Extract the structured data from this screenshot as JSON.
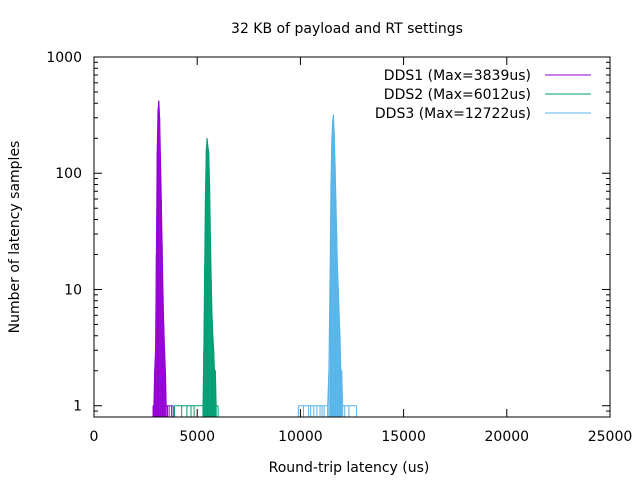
{
  "chart_data": {
    "type": "histogram",
    "title": "32 KB of payload and RT settings",
    "xlabel": "Round-trip latency (us)",
    "ylabel": "Number of latency samples",
    "xlim": [
      0,
      25000
    ],
    "ylim": [
      0.8,
      1000
    ],
    "y_scale": "log",
    "x_ticks": [
      0,
      5000,
      10000,
      15000,
      20000,
      25000
    ],
    "y_ticks": [
      {
        "value": 1,
        "label": "1"
      },
      {
        "value": 10,
        "label": "10"
      },
      {
        "value": 100,
        "label": "100"
      },
      {
        "value": 1000,
        "label": "1000"
      }
    ],
    "grid": false,
    "legend_position": "top-right",
    "series": [
      {
        "name": "DDS1 (Max=3839us)",
        "color": "#9400d3",
        "x": [
          2860,
          2900,
          2940,
          2980,
          3020,
          3060,
          3100,
          3140,
          3180,
          3220,
          3260,
          3300,
          3340,
          3380,
          3420,
          3460,
          3500,
          3560,
          3640,
          3760,
          3839
        ],
        "y": [
          1,
          1,
          2,
          3,
          20,
          150,
          350,
          420,
          300,
          140,
          60,
          25,
          10,
          5,
          3,
          2,
          1,
          1,
          1,
          1,
          1
        ]
      },
      {
        "name": "DDS2 (Max=6012us)",
        "color": "#009e73",
        "x": [
          3900,
          4250,
          4500,
          4700,
          4850,
          5280,
          5320,
          5360,
          5400,
          5440,
          5480,
          5520,
          5560,
          5600,
          5640,
          5680,
          5720,
          5760,
          5800,
          5840,
          5880,
          5920,
          6012
        ],
        "y": [
          1,
          1,
          1,
          1,
          1,
          1,
          3,
          15,
          70,
          160,
          200,
          170,
          150,
          80,
          30,
          12,
          6,
          4,
          3,
          2,
          2,
          1,
          1
        ]
      },
      {
        "name": "DDS3 (Max=12722us)",
        "color": "#56b4e9",
        "x": [
          9900,
          10150,
          10400,
          10500,
          10650,
          10800,
          10950,
          11050,
          11150,
          11320,
          11380,
          11440,
          11480,
          11520,
          11560,
          11600,
          11640,
          11680,
          11720,
          11760,
          11800,
          11840,
          11880,
          11920,
          11960,
          12000,
          12050,
          12150,
          12350,
          12722
        ],
        "y": [
          1,
          1,
          1,
          1,
          1,
          1,
          1,
          1,
          1,
          1,
          2,
          15,
          80,
          190,
          280,
          320,
          220,
          120,
          60,
          30,
          15,
          10,
          6,
          4,
          2,
          2,
          1,
          1,
          1,
          1
        ]
      }
    ]
  }
}
